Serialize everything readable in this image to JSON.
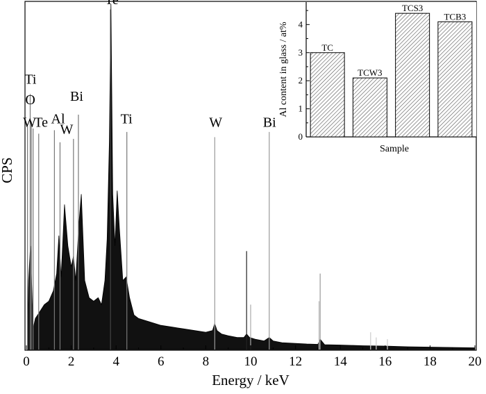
{
  "chart_data": [
    {
      "type": "line",
      "xlabel": "Energy / keV",
      "ylabel": "CPS",
      "xlim": [
        0,
        20
      ],
      "x_ticks": [
        "0",
        "2",
        "4",
        "6",
        "8",
        "10",
        "12",
        "14",
        "16",
        "18",
        "20"
      ],
      "y_ticks_labeled": false,
      "series": [
        {
          "style": "black EDS spectrum",
          "x": [
            0.05,
            0.1,
            0.18,
            0.25,
            0.3,
            0.4,
            0.5,
            0.6,
            0.8,
            1.0,
            1.2,
            1.35,
            1.45,
            1.55,
            1.7,
            1.85,
            2.0,
            2.1,
            2.2,
            2.35,
            2.45,
            2.6,
            2.8,
            3.0,
            3.2,
            3.35,
            3.5,
            3.6,
            3.7,
            3.77,
            3.85,
            3.95,
            4.05,
            4.15,
            4.3,
            4.45,
            4.6,
            4.8,
            5.0,
            5.5,
            6.0,
            6.5,
            7.0,
            7.5,
            8.0,
            8.3,
            8.4,
            8.5,
            8.7,
            9.0,
            9.4,
            9.7,
            9.82,
            9.95,
            10.2,
            10.6,
            10.83,
            11.0,
            11.4,
            12.0,
            12.5,
            13.0,
            13.1,
            13.3,
            14.0,
            14.5,
            15.0,
            16.0,
            17.0,
            18.0,
            19.0,
            20.0
          ],
          "y": [
            0.06,
            0.2,
            0.3,
            0.16,
            0.06,
            0.09,
            0.1,
            0.11,
            0.13,
            0.14,
            0.17,
            0.22,
            0.33,
            0.21,
            0.42,
            0.3,
            0.24,
            0.27,
            0.2,
            0.37,
            0.45,
            0.2,
            0.15,
            0.14,
            0.15,
            0.13,
            0.2,
            0.32,
            0.6,
            1.0,
            0.45,
            0.3,
            0.46,
            0.35,
            0.2,
            0.21,
            0.15,
            0.1,
            0.09,
            0.08,
            0.07,
            0.065,
            0.06,
            0.055,
            0.05,
            0.055,
            0.075,
            0.055,
            0.045,
            0.04,
            0.035,
            0.035,
            0.045,
            0.035,
            0.03,
            0.025,
            0.035,
            0.025,
            0.02,
            0.018,
            0.016,
            0.015,
            0.03,
            0.014,
            0.013,
            0.012,
            0.011,
            0.01,
            0.008,
            0.007,
            0.006,
            0.005
          ]
        }
      ],
      "peak_lines": [
        {
          "x": 0.05,
          "y": 0.645,
          "color": "#777777"
        },
        {
          "x": 0.17,
          "y": 0.74,
          "color": "#777777"
        },
        {
          "x": 0.22,
          "y": 0.66,
          "color": "#777777"
        },
        {
          "x": 0.3,
          "y": 0.64,
          "color": "#777777"
        },
        {
          "x": 0.55,
          "y": 0.625,
          "color": "#777777"
        },
        {
          "x": 1.25,
          "y": 0.635,
          "color": "#777777"
        },
        {
          "x": 1.5,
          "y": 0.6,
          "color": "#777777"
        },
        {
          "x": 2.1,
          "y": 0.61,
          "color": "#777777"
        },
        {
          "x": 2.32,
          "y": 0.68,
          "color": "#777777"
        },
        {
          "x": 3.75,
          "y": 0.985,
          "color": "#444444"
        },
        {
          "x": 4.48,
          "y": 0.63,
          "color": "#777777"
        },
        {
          "x": 8.4,
          "y": 0.615,
          "color": "#999999"
        },
        {
          "x": 9.82,
          "y": 0.285,
          "color": "#222222"
        },
        {
          "x": 10.0,
          "y": 0.13,
          "color": "#aaaaaa"
        },
        {
          "x": 10.83,
          "y": 0.63,
          "color": "#999999"
        },
        {
          "x": 13.1,
          "y": 0.22,
          "color": "#999999"
        },
        {
          "x": 13.05,
          "y": 0.14,
          "color": "#bbbbbb"
        },
        {
          "x": 15.35,
          "y": 0.05,
          "color": "#cccccc"
        },
        {
          "x": 15.6,
          "y": 0.035,
          "color": "#cccccc"
        },
        {
          "x": 16.1,
          "y": 0.03,
          "color": "#cccccc"
        }
      ],
      "annotations": [
        {
          "text": "Te",
          "x": 3.5,
          "y": 1.0
        },
        {
          "text": "Ti",
          "x": -0.08,
          "y": 0.77
        },
        {
          "text": "O",
          "x": -0.05,
          "y": 0.71
        },
        {
          "text": "W",
          "x": -0.15,
          "y": 0.645
        },
        {
          "text": "Te",
          "x": 0.35,
          "y": 0.645
        },
        {
          "text": "Al",
          "x": 1.1,
          "y": 0.655
        },
        {
          "text": "W",
          "x": 1.5,
          "y": 0.625
        },
        {
          "text": "Bi",
          "x": 1.95,
          "y": 0.72
        },
        {
          "text": "Ti",
          "x": 4.2,
          "y": 0.655
        },
        {
          "text": "W",
          "x": 8.15,
          "y": 0.645
        },
        {
          "text": "Bi",
          "x": 10.55,
          "y": 0.645
        }
      ]
    },
    {
      "type": "bar",
      "position": "top-right inset",
      "categories": [
        "TC",
        "TCW3",
        "TCS3",
        "TCB3"
      ],
      "values": [
        3.0,
        2.1,
        4.4,
        4.1
      ],
      "xlabel": "Sample",
      "ylabel": "Al content in glass / at%",
      "ylim": [
        0,
        4.8
      ],
      "y_ticks": [
        "0",
        "1",
        "2",
        "3",
        "4"
      ],
      "bar_pattern": "diagonal hatch"
    }
  ]
}
